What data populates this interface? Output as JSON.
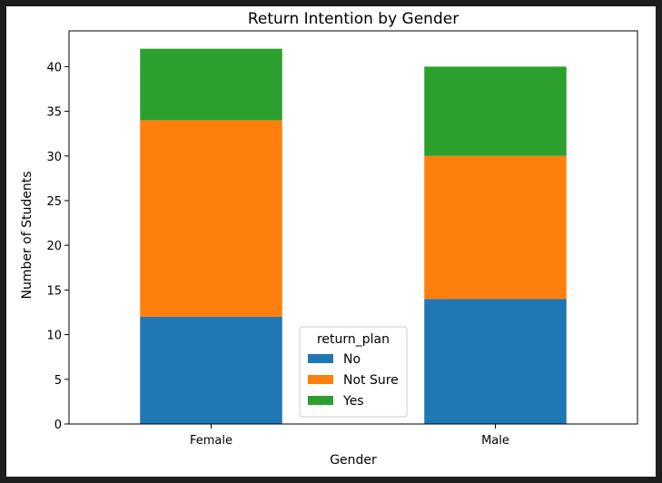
{
  "chart_data": {
    "type": "bar",
    "stacked": true,
    "title": "Return Intention by Gender",
    "xlabel": "Gender",
    "ylabel": "Number of Students",
    "categories": [
      "Female",
      "Male"
    ],
    "series": [
      {
        "name": "No",
        "values": [
          12,
          14
        ],
        "color": "#1f77b4"
      },
      {
        "name": "Not Sure",
        "values": [
          22,
          16
        ],
        "color": "#ff7f0e"
      },
      {
        "name": "Yes",
        "values": [
          8,
          10
        ],
        "color": "#2ca02c"
      }
    ],
    "ylim": [
      0,
      44
    ],
    "yticks": [
      0,
      5,
      10,
      15,
      20,
      25,
      30,
      35,
      40
    ],
    "grid": false,
    "legend": {
      "title": "return_plan",
      "placement": "bottom-center"
    }
  }
}
